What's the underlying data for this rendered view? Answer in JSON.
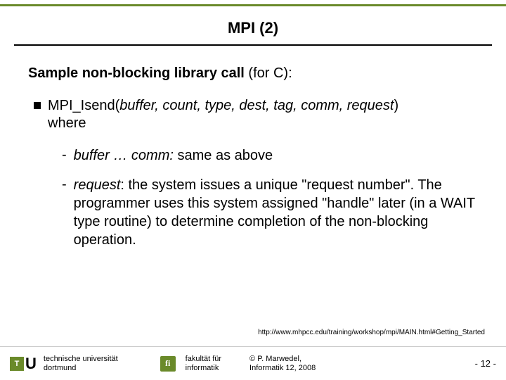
{
  "colors": {
    "accent": "#6a8a2a",
    "text": "#000000",
    "bg": "#ffffff"
  },
  "title": "MPI (2)",
  "intro_bold": "Sample non-blocking library call",
  "intro_rest": " (for C):",
  "l1_func": "MPI_Isend(",
  "l1_args": "buffer, count, type, dest, tag, comm, request",
  "l1_close": ")",
  "l1_where": "where",
  "l2a_it": "buffer … comm:",
  "l2a_rest": " same as above",
  "l2b_it": "request",
  "l2b_rest": ": the system issues a unique \"request number\". The programmer uses this system assigned \"handle\" later (in a WAIT type routine) to determine completion of the non-blocking operation.",
  "source_url": "http://www.mhpcc.edu/training/workshop/mpi/MAIN.html#Getting_Started",
  "footer": {
    "tu_t": "T",
    "tu_u": "U",
    "uni_l1": "technische universität",
    "uni_l2": "dortmund",
    "fi": "fi",
    "fak_l1": "fakultät für",
    "fak_l2": "informatik",
    "copy_l1": "© P. Marwedel,",
    "copy_l2": "Informatik 12,  2008",
    "page_prefix": "-  ",
    "page_num": "12",
    "page_suffix": " -"
  }
}
